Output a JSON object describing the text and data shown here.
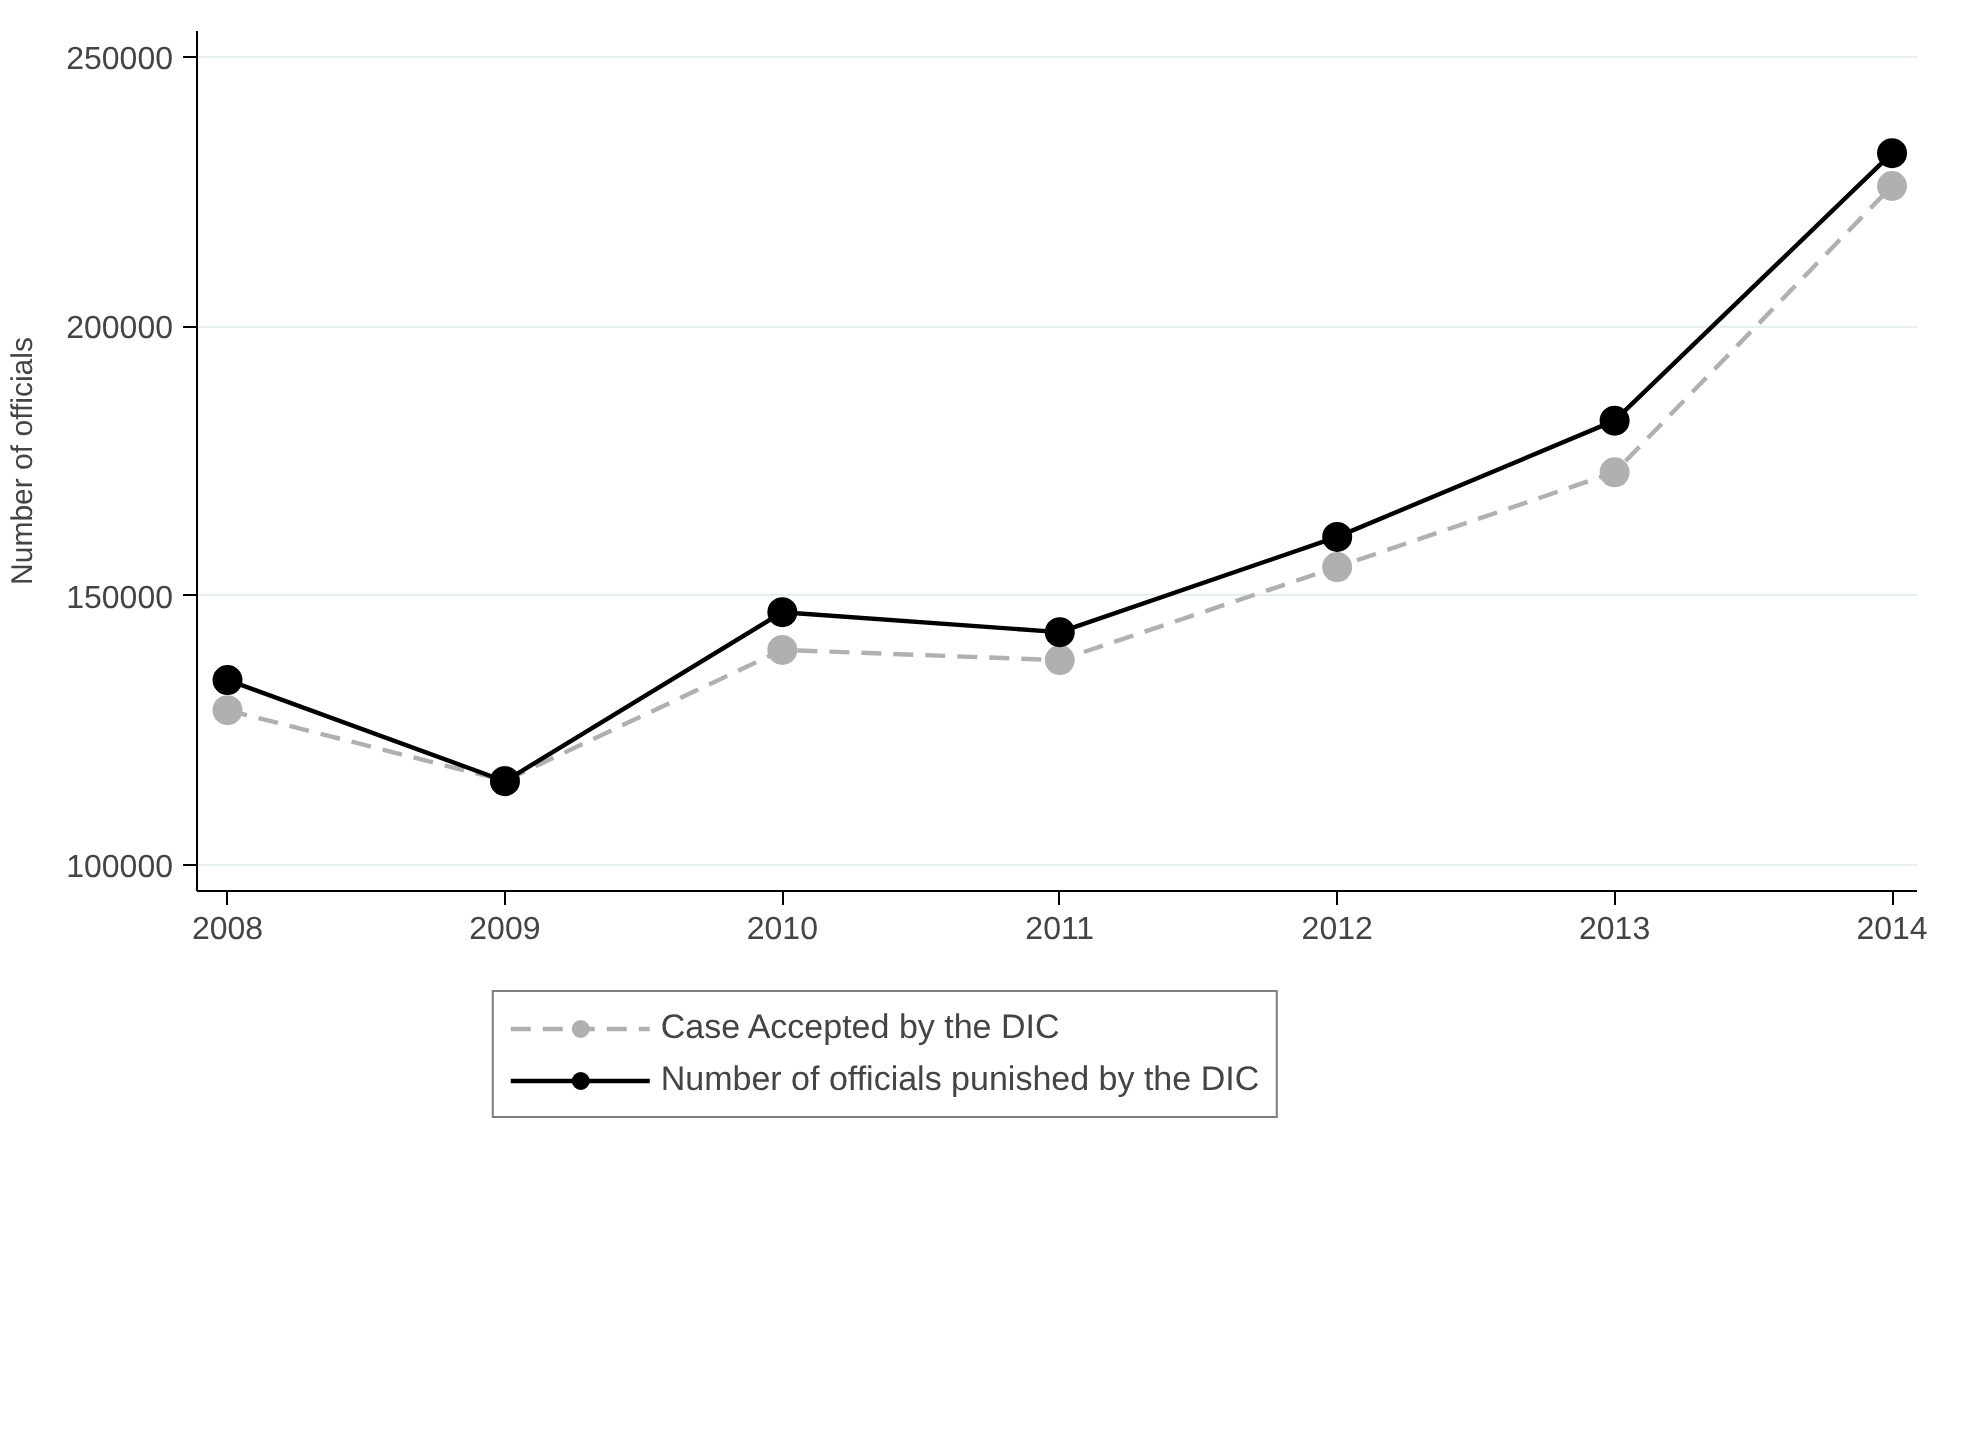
{
  "chart_data": {
    "type": "line",
    "ylabel": "Number of officials",
    "x": [
      2008,
      2009,
      2010,
      2011,
      2012,
      2013,
      2014
    ],
    "xlim": [
      2007.89,
      2014.09
    ],
    "xticks": [
      2008,
      2009,
      2010,
      2011,
      2012,
      2013,
      2014
    ],
    "ylim": [
      95100,
      254900
    ],
    "yticks": [
      100000,
      150000,
      200000,
      250000
    ],
    "grid": "y",
    "legend": "bottom",
    "marker": "circle",
    "series": [
      {
        "name": "Case Accepted by the DIC",
        "color": "#b0b0b0",
        "line_style": "dashed",
        "values": [
          128700,
          115600,
          139900,
          138000,
          155300,
          172900,
          226100
        ]
      },
      {
        "name": "Number of officials punished by the DIC",
        "color": "#000000",
        "line_style": "solid",
        "values": [
          134300,
          115500,
          146900,
          143200,
          160900,
          182500,
          232200
        ]
      }
    ]
  }
}
